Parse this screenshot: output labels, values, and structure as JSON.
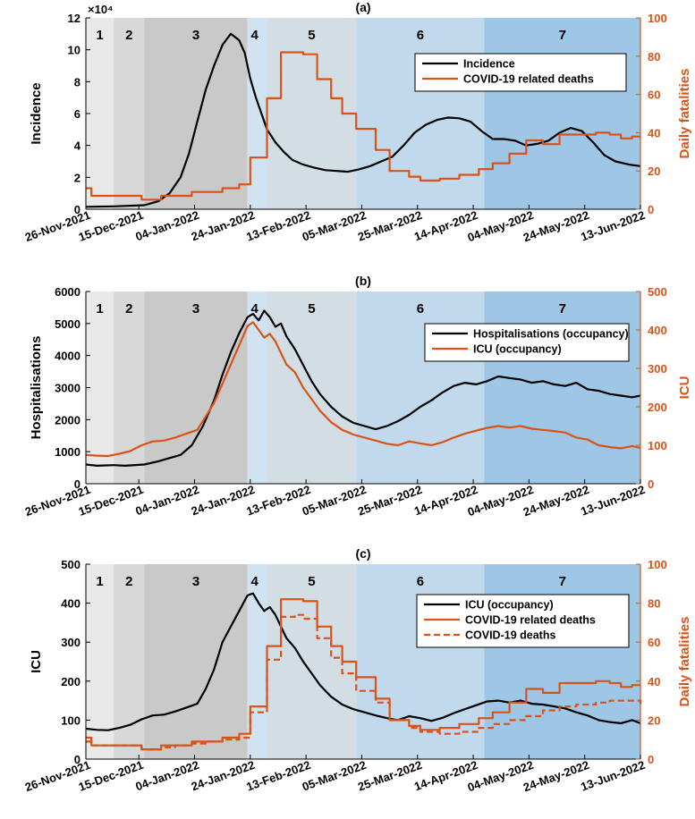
{
  "colors": {
    "black": "#000000",
    "orange": "#D95319",
    "phases": [
      "#e8e8e8",
      "#d8d8d8",
      "#c9c9c9",
      "#cfe3f1",
      "#d3dde4",
      "#c1d9ec",
      "#9ec7e5"
    ]
  },
  "phase_labels": [
    "1",
    "2",
    "3",
    "4",
    "5",
    "6",
    "7"
  ],
  "phase_bounds_days": [
    0,
    10,
    21,
    58,
    65,
    97,
    143,
    199
  ],
  "x_tick_labels": [
    "26-Nov-2021",
    "15-Dec-2021",
    "04-Jan-2022",
    "24-Jan-2022",
    "13-Feb-2022",
    "05-Mar-2022",
    "25-Mar-2022",
    "14-Apr-2022",
    "04-May-2022",
    "24-May-2022",
    "13-Jun-2022"
  ],
  "x_tick_days": [
    0,
    19,
    39,
    59,
    79,
    99,
    119,
    139,
    159,
    179,
    199
  ],
  "chart_data": [
    {
      "id": "a",
      "type": "line",
      "title": "(a)",
      "ylabel_left": "Incidence",
      "ylabel_right": "Daily fatalities",
      "exponent": "×10⁴",
      "ylim_left": [
        0,
        12
      ],
      "yticks_left": [
        0,
        2,
        4,
        6,
        8,
        10,
        12
      ],
      "ylim_right": [
        0,
        100
      ],
      "yticks_right": [
        0,
        20,
        40,
        60,
        80,
        100
      ],
      "legend": [
        "Incidence",
        "COVID-19 related deaths"
      ],
      "series": [
        {
          "name": "Incidence",
          "axis": "left",
          "color": "black",
          "style": "solid",
          "x": [
            0,
            10,
            21,
            26,
            30,
            34,
            37,
            40,
            43,
            46,
            49,
            52,
            55,
            57,
            59,
            61,
            63,
            65,
            68,
            71,
            74,
            78,
            82,
            86,
            90,
            94,
            98,
            102,
            106,
            110,
            114,
            118,
            122,
            126,
            130,
            134,
            138,
            142,
            146,
            150,
            154,
            158,
            162,
            166,
            170,
            174,
            178,
            182,
            186,
            190,
            195,
            199
          ],
          "y": [
            0.15,
            0.18,
            0.25,
            0.5,
            1.0,
            2.0,
            3.5,
            5.5,
            7.5,
            9.0,
            10.3,
            11.0,
            10.6,
            9.8,
            8.2,
            7.0,
            6.0,
            5.0,
            4.2,
            3.6,
            3.1,
            2.8,
            2.6,
            2.45,
            2.4,
            2.35,
            2.5,
            2.7,
            3.0,
            3.3,
            4.0,
            4.8,
            5.3,
            5.6,
            5.75,
            5.7,
            5.5,
            4.9,
            4.4,
            4.4,
            4.3,
            4.0,
            4.1,
            4.3,
            4.8,
            5.1,
            4.9,
            4.2,
            3.4,
            3.0,
            2.8,
            2.7
          ]
        },
        {
          "name": "COVID-19 related deaths",
          "axis": "right",
          "color": "orange",
          "style": "step",
          "x": [
            0,
            2,
            8,
            13,
            20,
            27,
            32,
            38,
            44,
            49,
            55,
            59,
            65,
            70,
            75,
            78,
            83,
            88,
            92,
            97,
            104,
            109,
            116,
            120,
            127,
            134,
            141,
            146,
            152,
            158,
            164,
            170,
            176,
            183,
            188,
            192,
            196,
            199
          ],
          "y": [
            11,
            7,
            7,
            7,
            5,
            7,
            7,
            9,
            9,
            11,
            13,
            27,
            58,
            82,
            82,
            81,
            68,
            58,
            50,
            42,
            31,
            20,
            17,
            15,
            16,
            18,
            21,
            24,
            29,
            36,
            34,
            39,
            39,
            40,
            39,
            37,
            38,
            38
          ]
        }
      ]
    },
    {
      "id": "b",
      "type": "line",
      "title": "(b)",
      "ylabel_left": "Hospitalisations",
      "ylabel_right": "ICU",
      "ylim_left": [
        0,
        6000
      ],
      "yticks_left": [
        0,
        1000,
        2000,
        3000,
        4000,
        5000,
        6000
      ],
      "ylim_right": [
        0,
        500
      ],
      "yticks_right": [
        0,
        100,
        200,
        300,
        400,
        500
      ],
      "legend": [
        "Hospitalisations (occupancy)",
        "ICU (occupancy)"
      ],
      "series": [
        {
          "name": "Hospitalisations (occupancy)",
          "axis": "left",
          "color": "black",
          "style": "solid",
          "x": [
            0,
            4,
            10,
            14,
            21,
            26,
            30,
            34,
            38,
            42,
            46,
            49,
            52,
            55,
            58,
            60,
            62,
            64,
            66,
            68,
            70,
            72,
            75,
            78,
            81,
            84,
            88,
            92,
            96,
            100,
            104,
            108,
            112,
            116,
            120,
            124,
            128,
            132,
            136,
            140,
            144,
            148,
            152,
            156,
            160,
            164,
            168,
            172,
            176,
            180,
            184,
            188,
            192,
            196,
            199
          ],
          "y": [
            600,
            560,
            580,
            560,
            600,
            700,
            800,
            900,
            1200,
            1800,
            2600,
            3400,
            4100,
            4700,
            5200,
            5300,
            5100,
            5400,
            5200,
            4900,
            5000,
            4600,
            4200,
            3700,
            3200,
            2800,
            2400,
            2100,
            1900,
            1800,
            1700,
            1800,
            1950,
            2150,
            2400,
            2600,
            2850,
            3050,
            3150,
            3100,
            3200,
            3350,
            3300,
            3250,
            3150,
            3200,
            3100,
            3050,
            3150,
            2950,
            2900,
            2800,
            2750,
            2700,
            2750
          ]
        },
        {
          "name": "ICU (occupancy)",
          "axis": "right",
          "color": "orange",
          "style": "solid",
          "x": [
            0,
            4,
            8,
            12,
            16,
            20,
            24,
            28,
            32,
            36,
            40,
            43,
            46,
            49,
            52,
            55,
            58,
            60,
            62,
            64,
            66,
            68,
            70,
            72,
            75,
            78,
            81,
            84,
            88,
            92,
            96,
            100,
            104,
            108,
            112,
            116,
            120,
            124,
            128,
            132,
            136,
            140,
            144,
            148,
            152,
            156,
            160,
            164,
            168,
            172,
            176,
            180,
            184,
            188,
            192,
            196,
            199
          ],
          "y": [
            75,
            73,
            72,
            78,
            85,
            100,
            110,
            112,
            120,
            130,
            140,
            175,
            210,
            260,
            310,
            360,
            410,
            420,
            400,
            380,
            390,
            370,
            340,
            310,
            290,
            250,
            220,
            190,
            160,
            140,
            128,
            120,
            112,
            104,
            100,
            110,
            105,
            100,
            108,
            120,
            130,
            138,
            145,
            150,
            146,
            150,
            143,
            140,
            137,
            133,
            120,
            115,
            100,
            95,
            92,
            98,
            93
          ]
        }
      ]
    },
    {
      "id": "c",
      "type": "line",
      "title": "(c)",
      "ylabel_left": "ICU",
      "ylabel_right": "Daily fatalities",
      "ylim_left": [
        0,
        500
      ],
      "yticks_left": [
        0,
        100,
        200,
        300,
        400,
        500
      ],
      "ylim_right": [
        0,
        100
      ],
      "yticks_right": [
        0,
        20,
        40,
        60,
        80,
        100
      ],
      "legend": [
        "ICU (occupancy)",
        "COVID-19 related deaths",
        "COVID-19 deaths"
      ],
      "series": [
        {
          "name": "ICU (occupancy)",
          "axis": "left",
          "color": "black",
          "style": "solid",
          "x": [
            0,
            4,
            8,
            12,
            16,
            20,
            24,
            28,
            32,
            36,
            40,
            43,
            46,
            49,
            52,
            55,
            58,
            60,
            62,
            64,
            66,
            68,
            70,
            72,
            75,
            78,
            81,
            84,
            88,
            92,
            96,
            100,
            104,
            108,
            112,
            116,
            120,
            124,
            128,
            132,
            136,
            140,
            144,
            148,
            152,
            156,
            160,
            164,
            168,
            172,
            176,
            180,
            184,
            188,
            192,
            196,
            199
          ],
          "y": [
            78,
            75,
            74,
            80,
            88,
            102,
            112,
            114,
            122,
            132,
            142,
            180,
            230,
            300,
            340,
            380,
            420,
            425,
            400,
            380,
            390,
            370,
            340,
            310,
            285,
            250,
            220,
            190,
            160,
            140,
            128,
            120,
            112,
            105,
            100,
            110,
            105,
            98,
            106,
            118,
            128,
            138,
            148,
            150,
            145,
            150,
            142,
            140,
            135,
            130,
            120,
            112,
            100,
            95,
            92,
            100,
            92
          ]
        },
        {
          "name": "COVID-19 related deaths",
          "axis": "right",
          "color": "orange",
          "style": "step",
          "x": [
            0,
            2,
            8,
            13,
            20,
            27,
            32,
            38,
            44,
            49,
            55,
            59,
            65,
            70,
            75,
            78,
            83,
            88,
            92,
            97,
            104,
            109,
            116,
            120,
            127,
            134,
            141,
            146,
            152,
            158,
            164,
            170,
            176,
            183,
            188,
            192,
            196,
            199
          ],
          "y": [
            11,
            7,
            7,
            7,
            5,
            7,
            7,
            9,
            9,
            11,
            13,
            27,
            58,
            82,
            82,
            81,
            68,
            58,
            50,
            42,
            31,
            20,
            17,
            15,
            16,
            18,
            21,
            24,
            29,
            36,
            34,
            39,
            39,
            40,
            39,
            37,
            38,
            38
          ]
        },
        {
          "name": "COVID-19 deaths",
          "axis": "right",
          "color": "orange",
          "style": "dashed-step",
          "x": [
            0,
            2,
            8,
            13,
            20,
            27,
            32,
            38,
            44,
            49,
            55,
            59,
            65,
            70,
            75,
            78,
            83,
            88,
            92,
            97,
            104,
            109,
            116,
            120,
            127,
            134,
            141,
            146,
            152,
            158,
            164,
            170,
            176,
            183,
            188,
            192,
            196,
            199
          ],
          "y": [
            9,
            7,
            7,
            7,
            5,
            6,
            7,
            8,
            9,
            10,
            11,
            24,
            51,
            73,
            74,
            72,
            62,
            52,
            44,
            35,
            29,
            20,
            16,
            14,
            13,
            14,
            16,
            18,
            20,
            22,
            25,
            27,
            28,
            29,
            30,
            30,
            30,
            28
          ]
        }
      ]
    }
  ]
}
